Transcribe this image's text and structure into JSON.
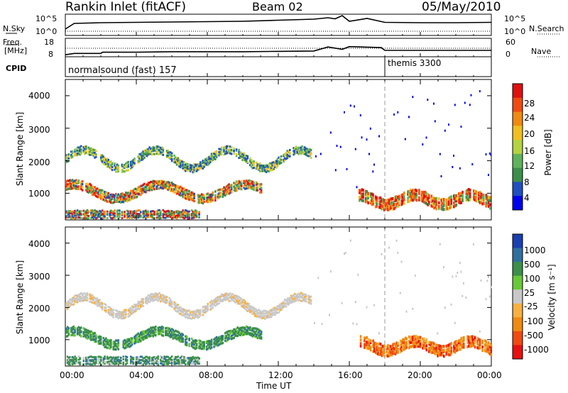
{
  "header": {
    "station": "Rankin Inlet (fitACF)",
    "beam": "Beam 02",
    "date": "05/May/2010"
  },
  "top_panel": {
    "left_label": "N.Sky",
    "left_ticks": [
      "10^5",
      "10^0"
    ],
    "right_label": "N.Search",
    "right_ticks": [
      "10^5",
      "10^0"
    ]
  },
  "freq_panel": {
    "left_label_1": "Freq.",
    "left_label_2": "[MHz]",
    "left_ticks": [
      "18",
      "8"
    ],
    "right_label": "Nave",
    "right_ticks": [
      "60",
      "0"
    ]
  },
  "cpid": {
    "label": "CPID",
    "mode_1": "normalsound (fast) 157",
    "mode_2": "themis 3300"
  },
  "colors": {
    "power_scale": [
      "#0000ee",
      "#1f4fc0",
      "#3b8f4a",
      "#5fb35a",
      "#b5d240",
      "#f0c020",
      "#f08a10",
      "#f04a10",
      "#e01010"
    ],
    "velocity_scale": [
      "#e81010",
      "#f04a10",
      "#f08a10",
      "#f8b040",
      "#c8c8c8",
      "#68c838",
      "#3b8f4a",
      "#2f6fa0",
      "#1a3fb0"
    ]
  },
  "chart_data": [
    {
      "type": "line",
      "name": "sky-noise-search-noise",
      "xlabel": "",
      "ylabel": "N.Sky",
      "x_range": [
        0,
        24
      ],
      "series": [
        {
          "name": "N.Sky",
          "x": [
            0,
            0.5,
            2,
            4,
            6,
            8,
            10,
            12,
            14,
            14.8,
            15.2,
            15.6,
            16,
            17,
            18,
            20,
            22,
            24
          ],
          "values": [
            1,
            2.6,
            2.8,
            2.9,
            3.0,
            3.1,
            3.2,
            3.5,
            3.8,
            4.2,
            3.9,
            4.8,
            3.2,
            4.0,
            2.9,
            2.8,
            2.8,
            2.9
          ]
        },
        {
          "name": "N.Search",
          "x": [
            0,
            24
          ],
          "values": [
            0.5,
            0.5
          ]
        }
      ]
    },
    {
      "type": "line",
      "name": "frequency-nave",
      "ylabel": "Freq. [MHz]",
      "y2label": "Nave",
      "series": [
        {
          "name": "Freq.",
          "x": [
            0,
            0.5,
            2,
            2.1,
            4,
            6,
            8,
            10,
            12,
            14,
            14.8,
            15.6,
            16,
            17.8,
            18,
            24
          ],
          "values": [
            10,
            10.8,
            10.8,
            11.5,
            11.5,
            11.8,
            11.8,
            11.8,
            12,
            12.2,
            14.6,
            13.2,
            14.8,
            14.2,
            12.6,
            12.6
          ]
        },
        {
          "name": "Nave",
          "x": [
            0,
            24
          ],
          "values": [
            30,
            30
          ]
        }
      ]
    },
    {
      "type": "heatmap",
      "name": "power",
      "ylabel": "Slant Range [km]",
      "xlabel": "Time UT",
      "x_ticks": [
        "00:00",
        "04:00",
        "08:00",
        "12:00",
        "16:00",
        "20:00",
        "00:00"
      ],
      "y_ticks": [
        "1000",
        "2000",
        "3000",
        "4000"
      ],
      "y_range_km": [
        180,
        4500
      ],
      "colorbar_label": "Power [dB]",
      "colorbar_ticks": [
        "4",
        "8",
        "12",
        "16",
        "20",
        "24",
        "28"
      ]
    },
    {
      "type": "heatmap",
      "name": "velocity",
      "ylabel": "Slant Range [km]",
      "xlabel": "Time UT",
      "x_ticks": [
        "00:00",
        "04:00",
        "08:00",
        "12:00",
        "16:00",
        "20:00",
        "00:00"
      ],
      "y_ticks": [
        "1000",
        "2000",
        "3000",
        "4000"
      ],
      "y_range_km": [
        180,
        4500
      ],
      "colorbar_label": "Velocity [m s⁻¹]",
      "colorbar_ticks": [
        "1000",
        "500",
        "100",
        "25",
        "-25",
        "-100",
        "-500",
        "-1000"
      ]
    }
  ],
  "footer": {
    "time_label": "Time UT"
  }
}
